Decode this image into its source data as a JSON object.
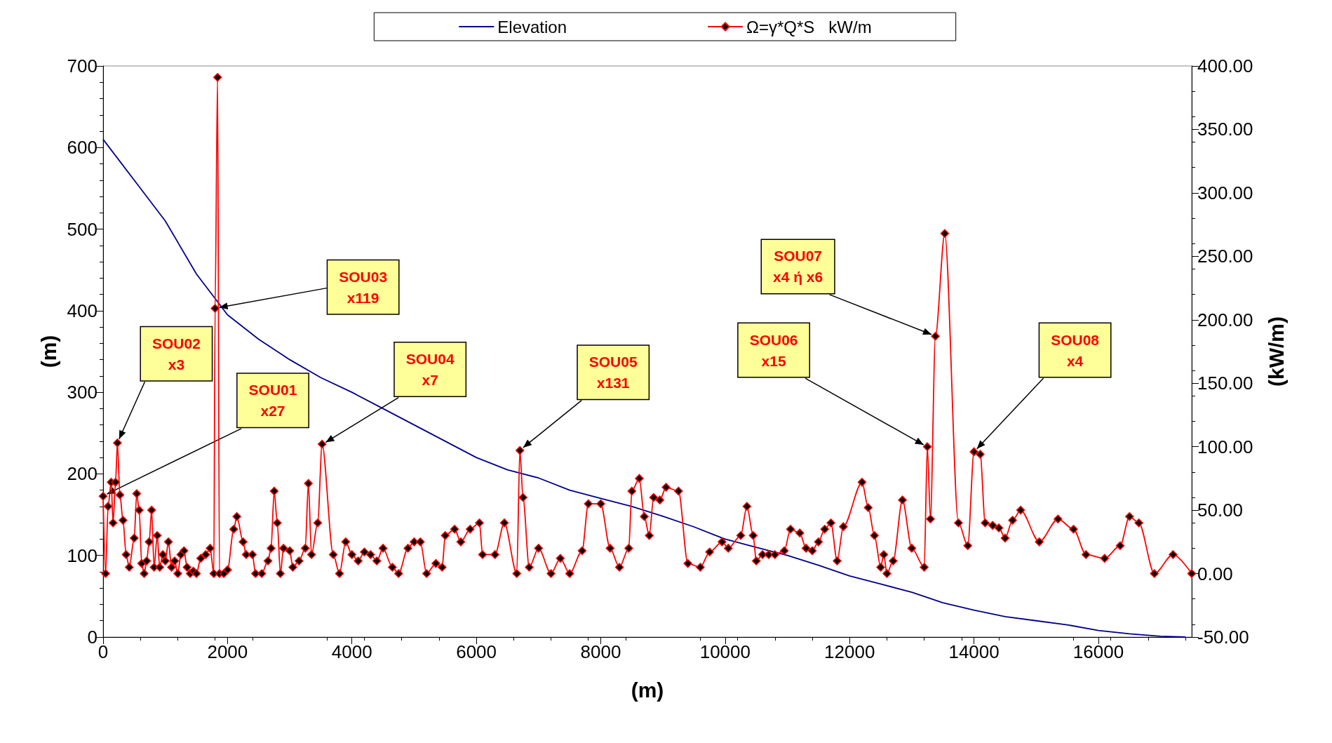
{
  "chart_data": {
    "type": "line",
    "xlabel": "(m)",
    "ylabel": "(m)",
    "y2label": "(kW/m)",
    "legend": "top",
    "grid": false,
    "xlim": [
      0,
      17500
    ],
    "xticks": [
      0,
      2000,
      4000,
      6000,
      8000,
      10000,
      12000,
      14000,
      16000
    ],
    "ylim": [
      0,
      700
    ],
    "yticks": [
      0,
      100,
      200,
      300,
      400,
      500,
      600,
      700
    ],
    "y2lim": [
      -50,
      400
    ],
    "y2ticks": [
      {
        "value": -50,
        "label": "-50.00"
      },
      {
        "value": 0,
        "label": "0.00"
      },
      {
        "value": 50,
        "label": "50.00"
      },
      {
        "value": 100,
        "label": "100.00"
      },
      {
        "value": 150,
        "label": "150.00"
      },
      {
        "value": 200,
        "label": "200.00"
      },
      {
        "value": 250,
        "label": "250.00"
      },
      {
        "value": 300,
        "label": "300.00"
      },
      {
        "value": 350,
        "label": "350.00"
      },
      {
        "value": 400,
        "label": "400.00"
      }
    ],
    "series": [
      {
        "name": "Elevation",
        "color": "#00008b",
        "marker": "none",
        "x": [
          0,
          500,
          1000,
          1500,
          2000,
          2500,
          3000,
          3500,
          4000,
          4500,
          5000,
          5500,
          6000,
          6500,
          7000,
          7500,
          8000,
          8500,
          9000,
          9500,
          10000,
          10500,
          11000,
          11500,
          12000,
          12500,
          13000,
          13500,
          14000,
          14500,
          15000,
          15500,
          16000,
          16500,
          17000,
          17400
        ],
        "values": [
          610,
          560,
          510,
          445,
          395,
          365,
          340,
          318,
          300,
          280,
          260,
          240,
          220,
          205,
          195,
          180,
          170,
          160,
          148,
          135,
          120,
          110,
          100,
          88,
          75,
          65,
          55,
          42,
          33,
          25,
          20,
          15,
          8,
          4,
          1,
          0
        ]
      },
      {
        "name": "Ω=γ*Q*S   kW/m",
        "color": "#ff0000",
        "marker": "diamond",
        "axis": "y2",
        "x": [
          0,
          40,
          80,
          130,
          160,
          200,
          230,
          270,
          320,
          370,
          420,
          500,
          540,
          580,
          620,
          660,
          700,
          740,
          780,
          820,
          870,
          910,
          960,
          1000,
          1050,
          1100,
          1150,
          1200,
          1250,
          1300,
          1350,
          1400,
          1450,
          1500,
          1570,
          1650,
          1720,
          1780,
          1800,
          1840,
          1870,
          1940,
          2000,
          2100,
          2150,
          2250,
          2300,
          2400,
          2450,
          2550,
          2650,
          2700,
          2750,
          2800,
          2850,
          2900,
          3000,
          3050,
          3150,
          3250,
          3300,
          3350,
          3450,
          3520,
          3700,
          3800,
          3900,
          4000,
          4100,
          4200,
          4300,
          4400,
          4500,
          4650,
          4750,
          4900,
          5000,
          5100,
          5200,
          5350,
          5450,
          5500,
          5650,
          5750,
          5900,
          6050,
          6100,
          6300,
          6450,
          6650,
          6700,
          6750,
          6850,
          7000,
          7200,
          7350,
          7500,
          7700,
          7800,
          8000,
          8150,
          8300,
          8450,
          8500,
          8620,
          8700,
          8780,
          8850,
          8950,
          9050,
          9250,
          9400,
          9600,
          9750,
          9950,
          10050,
          10250,
          10350,
          10450,
          10500,
          10600,
          10700,
          10800,
          10950,
          11050,
          11200,
          11300,
          11400,
          11500,
          11600,
          11700,
          11800,
          11900,
          12200,
          12300,
          12400,
          12500,
          12550,
          12600,
          12700,
          12850,
          13000,
          13200,
          13250,
          13300,
          13380,
          13530,
          13750,
          13900,
          14000,
          14100,
          14180,
          14300,
          14400,
          14500,
          14620,
          14750,
          15050,
          15350,
          15600,
          15800,
          16100,
          16350,
          16500,
          16650,
          16900,
          17200,
          17500
        ],
        "values": [
          61,
          0,
          53,
          72,
          40,
          72,
          103,
          62,
          42,
          15,
          5,
          28,
          63,
          50,
          8,
          0,
          10,
          25,
          50,
          5,
          30,
          5,
          15,
          10,
          25,
          5,
          10,
          0,
          15,
          18,
          5,
          0,
          2,
          0,
          12,
          15,
          20,
          0,
          209,
          391,
          0,
          0,
          3,
          35,
          45,
          25,
          15,
          15,
          0,
          0,
          10,
          20,
          65,
          40,
          0,
          20,
          18,
          5,
          10,
          20,
          71,
          15,
          40,
          102,
          15,
          0,
          25,
          15,
          10,
          17,
          15,
          10,
          20,
          5,
          0,
          20,
          25,
          25,
          0,
          8,
          5,
          30,
          35,
          25,
          35,
          40,
          15,
          15,
          40,
          0,
          97,
          60,
          5,
          20,
          0,
          12,
          0,
          18,
          55,
          55,
          20,
          5,
          20,
          65,
          75,
          45,
          30,
          60,
          58,
          68,
          65,
          8,
          5,
          17,
          25,
          20,
          30,
          53,
          30,
          10,
          15,
          15,
          15,
          18,
          35,
          32,
          20,
          18,
          25,
          35,
          40,
          10,
          37,
          72,
          52,
          30,
          5,
          15,
          0,
          10,
          58,
          20,
          5,
          100,
          43,
          187,
          268,
          40,
          22,
          96,
          94,
          40,
          38,
          36,
          28,
          42,
          50,
          25,
          43,
          35,
          15,
          12,
          22,
          45,
          40,
          0,
          15,
          0
        ]
      }
    ],
    "annotations": [
      {
        "text": "SOU01\nx27",
        "x": 0,
        "y": 173
      },
      {
        "text": "SOU02\nx3",
        "x": 230,
        "y": 238
      },
      {
        "text": "SOU03\nx119",
        "x": 1800,
        "y": 403
      },
      {
        "text": "SOU04\nx7",
        "x": 3520,
        "y": 236
      },
      {
        "text": "SOU05\nx131",
        "x": 6700,
        "y": 229
      },
      {
        "text": "SOU06\nx15",
        "x": 13250,
        "y": 233
      },
      {
        "text": "SOU07\nx4 ή x6",
        "x": 13380,
        "y": 369
      },
      {
        "text": "SOU08\nx4",
        "x": 14000,
        "y": 227
      }
    ]
  }
}
